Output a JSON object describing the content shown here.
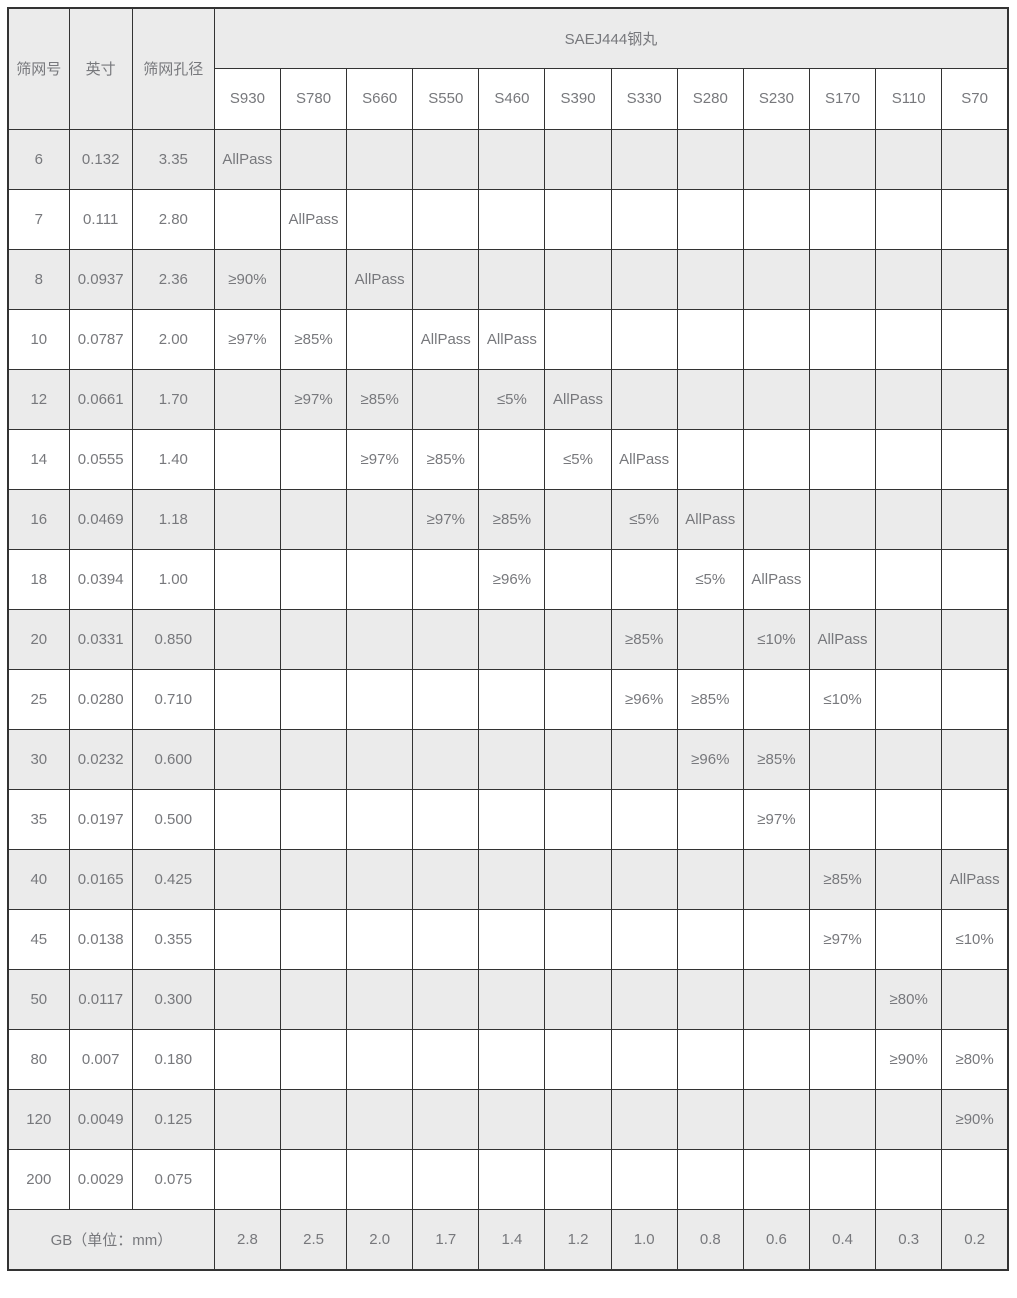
{
  "table": {
    "title": "SAEJ444钢丸",
    "col_headers": {
      "mesh": "筛网号",
      "inch": "英寸",
      "aperture": "筛网孔径"
    },
    "shot_columns": [
      "S930",
      "S780",
      "S660",
      "S550",
      "S460",
      "S390",
      "S330",
      "S280",
      "S230",
      "S170",
      "S110",
      "S70"
    ],
    "rows": [
      {
        "mesh": "6",
        "inch": "0.132",
        "aperture": "3.35",
        "cells": [
          "AllPass",
          "",
          "",
          "",
          "",
          "",
          "",
          "",
          "",
          "",
          "",
          ""
        ]
      },
      {
        "mesh": "7",
        "inch": "0.111",
        "aperture": "2.80",
        "cells": [
          "",
          "AllPass",
          "",
          "",
          "",
          "",
          "",
          "",
          "",
          "",
          "",
          ""
        ]
      },
      {
        "mesh": "8",
        "inch": "0.0937",
        "aperture": "2.36",
        "cells": [
          "≥90%",
          "",
          "AllPass",
          "",
          "",
          "",
          "",
          "",
          "",
          "",
          "",
          ""
        ]
      },
      {
        "mesh": "10",
        "inch": "0.0787",
        "aperture": "2.00",
        "cells": [
          "≥97%",
          "≥85%",
          "",
          "AllPass",
          "AllPass",
          "",
          "",
          "",
          "",
          "",
          "",
          ""
        ]
      },
      {
        "mesh": "12",
        "inch": "0.0661",
        "aperture": "1.70",
        "cells": [
          "",
          "≥97%",
          "≥85%",
          "",
          "≤5%",
          "AllPass",
          "",
          "",
          "",
          "",
          "",
          ""
        ]
      },
      {
        "mesh": "14",
        "inch": "0.0555",
        "aperture": "1.40",
        "cells": [
          "",
          "",
          "≥97%",
          "≥85%",
          "",
          "≤5%",
          "AllPass",
          "",
          "",
          "",
          "",
          ""
        ]
      },
      {
        "mesh": "16",
        "inch": "0.0469",
        "aperture": "1.18",
        "cells": [
          "",
          "",
          "",
          "≥97%",
          "≥85%",
          "",
          "≤5%",
          "AllPass",
          "",
          "",
          "",
          ""
        ]
      },
      {
        "mesh": "18",
        "inch": "0.0394",
        "aperture": "1.00",
        "cells": [
          "",
          "",
          "",
          "",
          "≥96%",
          "",
          "",
          "≤5%",
          "AllPass",
          "",
          "",
          ""
        ]
      },
      {
        "mesh": "20",
        "inch": "0.0331",
        "aperture": "0.850",
        "cells": [
          "",
          "",
          "",
          "",
          "",
          "",
          "≥85%",
          "",
          "≤10%",
          "AllPass",
          "",
          ""
        ]
      },
      {
        "mesh": "25",
        "inch": "0.0280",
        "aperture": "0.710",
        "cells": [
          "",
          "",
          "",
          "",
          "",
          "",
          "≥96%",
          "≥85%",
          "",
          "≤10%",
          "",
          ""
        ]
      },
      {
        "mesh": "30",
        "inch": "0.0232",
        "aperture": "0.600",
        "cells": [
          "",
          "",
          "",
          "",
          "",
          "",
          "",
          "≥96%",
          "≥85%",
          "",
          "",
          ""
        ]
      },
      {
        "mesh": "35",
        "inch": "0.0197",
        "aperture": "0.500",
        "cells": [
          "",
          "",
          "",
          "",
          "",
          "",
          "",
          "",
          "≥97%",
          "",
          "",
          ""
        ]
      },
      {
        "mesh": "40",
        "inch": "0.0165",
        "aperture": "0.425",
        "cells": [
          "",
          "",
          "",
          "",
          "",
          "",
          "",
          "",
          "",
          "≥85%",
          "",
          "AllPass"
        ]
      },
      {
        "mesh": "45",
        "inch": "0.0138",
        "aperture": "0.355",
        "cells": [
          "",
          "",
          "",
          "",
          "",
          "",
          "",
          "",
          "",
          "≥97%",
          "",
          "≤10%"
        ]
      },
      {
        "mesh": "50",
        "inch": "0.0117",
        "aperture": "0.300",
        "cells": [
          "",
          "",
          "",
          "",
          "",
          "",
          "",
          "",
          "",
          "",
          "≥80%",
          ""
        ]
      },
      {
        "mesh": "80",
        "inch": "0.007",
        "aperture": "0.180",
        "cells": [
          "",
          "",
          "",
          "",
          "",
          "",
          "",
          "",
          "",
          "",
          "≥90%",
          "≥80%"
        ]
      },
      {
        "mesh": "120",
        "inch": "0.0049",
        "aperture": "0.125",
        "cells": [
          "",
          "",
          "",
          "",
          "",
          "",
          "",
          "",
          "",
          "",
          "",
          "≥90%"
        ]
      },
      {
        "mesh": "200",
        "inch": "0.0029",
        "aperture": "0.075",
        "cells": [
          "",
          "",
          "",
          "",
          "",
          "",
          "",
          "",
          "",
          "",
          "",
          ""
        ]
      }
    ],
    "footer": {
      "label": "GB（单位：mm）",
      "values": [
        "2.8",
        "2.5",
        "2.0",
        "1.7",
        "1.4",
        "1.2",
        "1.0",
        "0.8",
        "0.6",
        "0.4",
        "0.3",
        "0.2"
      ]
    }
  },
  "colors": {
    "stripe": "#ebebeb",
    "text": "#77787c",
    "border": "#333333"
  }
}
